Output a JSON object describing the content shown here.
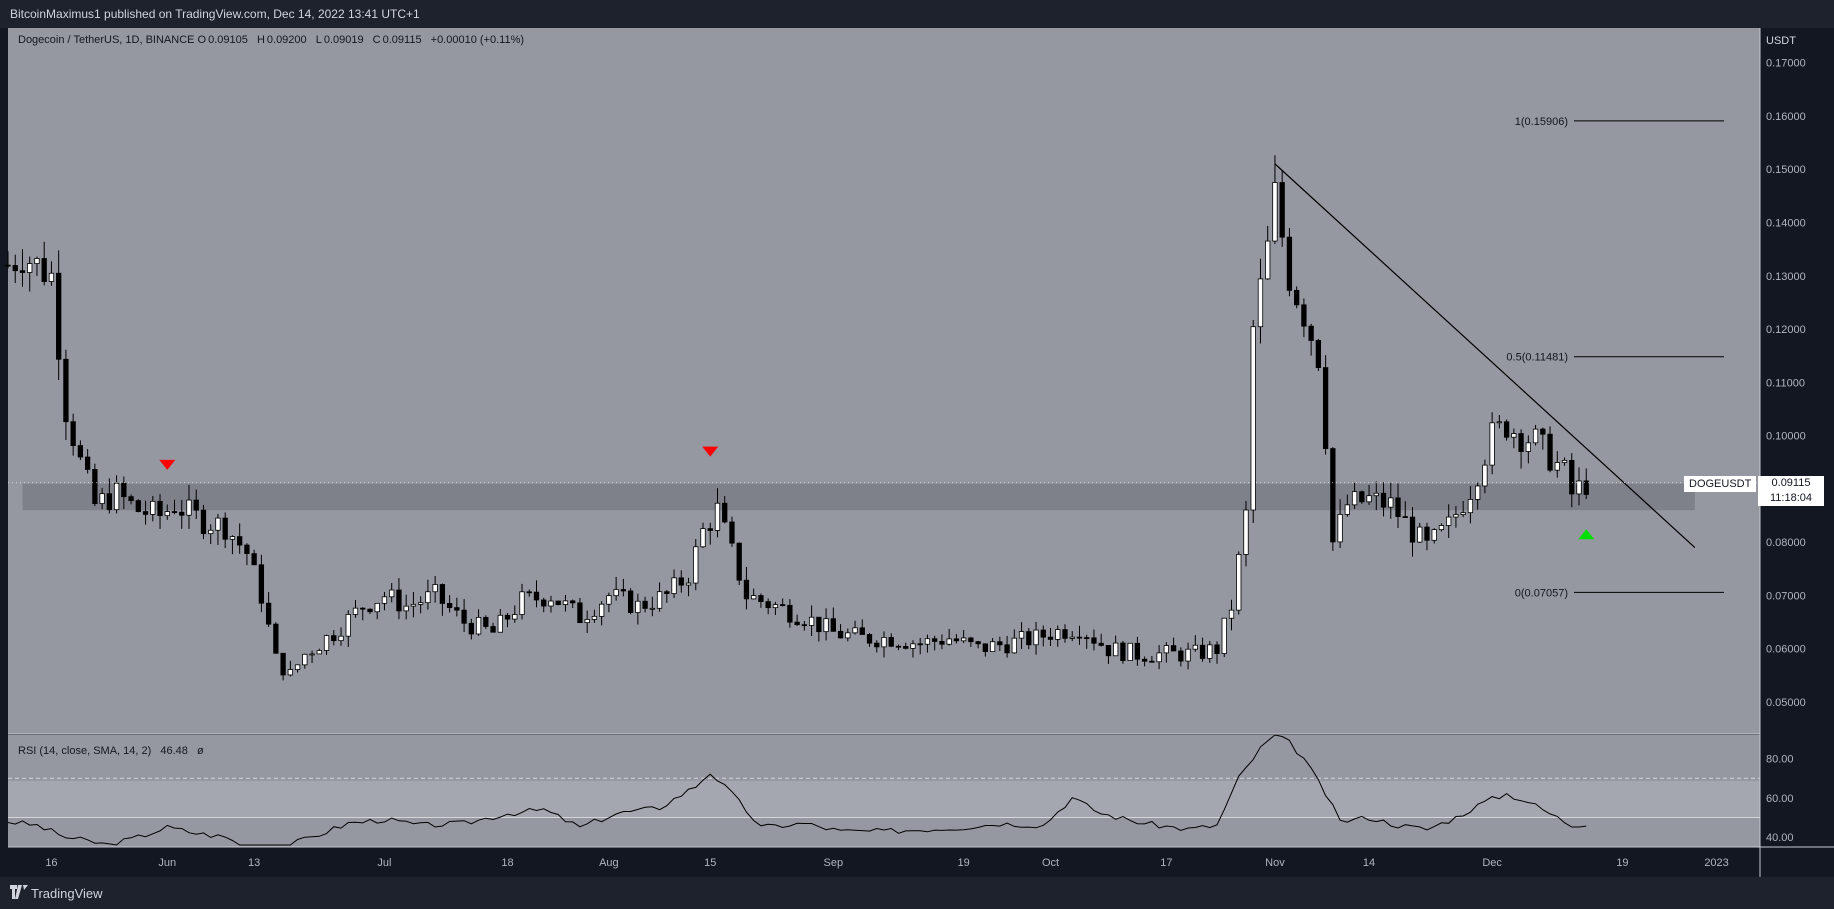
{
  "header": {
    "published": "BitcoinMaximus1 published on TradingView.com, Dec 14, 2022 13:41 UTC+1"
  },
  "footer": {
    "brand": "TradingView"
  },
  "legend": {
    "title": "Dogecoin / TetherUS, 1D, BINANCE",
    "open_label": "O",
    "open": "0.09105",
    "high_label": "H",
    "high": "0.09200",
    "low_label": "L",
    "low": "0.09019",
    "close_label": "C",
    "close": "0.09115",
    "change": "+0.00010 (+0.11%)"
  },
  "price_axis": {
    "unit": "USDT"
  },
  "last_price": {
    "symbol": "DOGEUSDT",
    "value": "0.09115",
    "countdown": "11:18:04"
  },
  "rsi_legend": {
    "label": "RSI (14, close, SMA, 14, 2)",
    "value": "46.48",
    "extra": "ø"
  },
  "colors": {
    "background": "#131722",
    "pane": "#9598a1",
    "candle_up": "#ffffff",
    "candle_down": "#000000",
    "resistance_zone": "#787b86",
    "marker_down": "#ff0000",
    "marker_up": "#00e000"
  },
  "chart_data": {
    "type": "candlestick",
    "symbol": "DOGEUSDT",
    "y_axis": {
      "min": 0.044,
      "max": 0.1765,
      "ticks": [
        "0.05000",
        "0.06000",
        "0.07000",
        "0.08000",
        "0.09000",
        "0.10000",
        "0.11000",
        "0.12000",
        "0.13000",
        "0.14000",
        "0.15000",
        "0.16000",
        "0.17000"
      ]
    },
    "x_axis": {
      "start": "2022-05-10",
      "end": "2023-01-07",
      "ticks": [
        {
          "date": "2022-05-16",
          "label": "16"
        },
        {
          "date": "2022-06-01",
          "label": "Jun"
        },
        {
          "date": "2022-06-13",
          "label": "13"
        },
        {
          "date": "2022-07-01",
          "label": "Jul"
        },
        {
          "date": "2022-07-18",
          "label": "18"
        },
        {
          "date": "2022-08-01",
          "label": "Aug"
        },
        {
          "date": "2022-08-15",
          "label": "15"
        },
        {
          "date": "2022-09-01",
          "label": "Sep"
        },
        {
          "date": "2022-09-19",
          "label": "19"
        },
        {
          "date": "2022-10-01",
          "label": "Oct"
        },
        {
          "date": "2022-10-17",
          "label": "17"
        },
        {
          "date": "2022-11-01",
          "label": "Nov"
        },
        {
          "date": "2022-11-14",
          "label": "14"
        },
        {
          "date": "2022-12-01",
          "label": "Dec"
        },
        {
          "date": "2022-12-19",
          "label": "19"
        },
        {
          "date": "2023-01-01",
          "label": "2023"
        }
      ]
    },
    "price_path": [
      [
        "2022-05-10",
        0.132
      ],
      [
        "2022-05-12",
        0.134
      ],
      [
        "2022-05-14",
        0.132
      ],
      [
        "2022-05-16",
        0.13
      ],
      [
        "2022-05-18",
        0.105
      ],
      [
        "2022-05-20",
        0.095
      ],
      [
        "2022-05-22",
        0.087
      ],
      [
        "2022-05-25",
        0.089
      ],
      [
        "2022-05-28",
        0.086
      ],
      [
        "2022-05-31",
        0.085
      ],
      [
        "2022-06-02",
        0.087
      ],
      [
        "2022-06-06",
        0.084
      ],
      [
        "2022-06-09",
        0.083
      ],
      [
        "2022-06-12",
        0.078
      ],
      [
        "2022-06-14",
        0.07
      ],
      [
        "2022-06-16",
        0.058
      ],
      [
        "2022-06-18",
        0.055
      ],
      [
        "2022-06-20",
        0.059
      ],
      [
        "2022-06-24",
        0.063
      ],
      [
        "2022-06-28",
        0.068
      ],
      [
        "2022-07-01",
        0.07
      ],
      [
        "2022-07-04",
        0.068
      ],
      [
        "2022-07-08",
        0.07
      ],
      [
        "2022-07-12",
        0.065
      ],
      [
        "2022-07-16",
        0.063
      ],
      [
        "2022-07-20",
        0.069
      ],
      [
        "2022-07-24",
        0.07
      ],
      [
        "2022-07-28",
        0.066
      ],
      [
        "2022-08-01",
        0.07
      ],
      [
        "2022-08-05",
        0.068
      ],
      [
        "2022-08-09",
        0.07
      ],
      [
        "2022-08-12",
        0.074
      ],
      [
        "2022-08-14",
        0.082
      ],
      [
        "2022-08-16",
        0.086
      ],
      [
        "2022-08-18",
        0.078
      ],
      [
        "2022-08-20",
        0.07
      ],
      [
        "2022-08-24",
        0.068
      ],
      [
        "2022-08-28",
        0.066
      ],
      [
        "2022-09-01",
        0.063
      ],
      [
        "2022-09-05",
        0.062
      ],
      [
        "2022-09-09",
        0.062
      ],
      [
        "2022-09-13",
        0.061
      ],
      [
        "2022-09-17",
        0.062
      ],
      [
        "2022-09-21",
        0.06
      ],
      [
        "2022-09-25",
        0.061
      ],
      [
        "2022-09-29",
        0.062
      ],
      [
        "2022-10-01",
        0.063
      ],
      [
        "2022-10-05",
        0.064
      ],
      [
        "2022-10-09",
        0.06
      ],
      [
        "2022-10-13",
        0.059
      ],
      [
        "2022-10-17",
        0.059
      ],
      [
        "2022-10-21",
        0.059
      ],
      [
        "2022-10-24",
        0.06
      ],
      [
        "2022-10-26",
        0.068
      ],
      [
        "2022-10-28",
        0.085
      ],
      [
        "2022-10-29",
        0.12
      ],
      [
        "2022-10-31",
        0.135
      ],
      [
        "2022-11-01",
        0.145
      ],
      [
        "2022-11-03",
        0.13
      ],
      [
        "2022-11-05",
        0.123
      ],
      [
        "2022-11-07",
        0.115
      ],
      [
        "2022-11-08",
        0.1
      ],
      [
        "2022-11-09",
        0.08
      ],
      [
        "2022-11-11",
        0.087
      ],
      [
        "2022-11-14",
        0.088
      ],
      [
        "2022-11-17",
        0.087
      ],
      [
        "2022-11-20",
        0.082
      ],
      [
        "2022-11-22",
        0.079
      ],
      [
        "2022-11-25",
        0.083
      ],
      [
        "2022-11-28",
        0.09
      ],
      [
        "2022-12-01",
        0.1
      ],
      [
        "2022-12-03",
        0.102
      ],
      [
        "2022-12-05",
        0.1
      ],
      [
        "2022-12-07",
        0.099
      ],
      [
        "2022-12-09",
        0.096
      ],
      [
        "2022-12-11",
        0.093
      ],
      [
        "2022-12-12",
        0.089
      ],
      [
        "2022-12-14",
        0.09115
      ]
    ],
    "annotations": {
      "fib_levels": [
        {
          "label": "1(0.15906)",
          "value": 0.15906
        },
        {
          "label": "0.5(0.11481)",
          "value": 0.11481
        },
        {
          "label": "0(0.07057)",
          "value": 0.07057
        }
      ],
      "resistance_zone": {
        "low": 0.086,
        "high": 0.091,
        "from": "2022-05-12",
        "to": "2022-12-29"
      },
      "trendline": {
        "from": [
          "2022-11-01",
          0.151
        ],
        "to": [
          "2022-12-29",
          0.079
        ]
      },
      "markers": [
        {
          "type": "down",
          "date": "2022-06-01",
          "price": 0.0945
        },
        {
          "type": "down",
          "date": "2022-08-15",
          "price": 0.097
        },
        {
          "type": "up",
          "date": "2022-12-14",
          "price": 0.0815
        }
      ]
    },
    "rsi": {
      "ticks": [
        "40.00",
        "60.00",
        "80.00"
      ],
      "levels": [
        70,
        50
      ],
      "range": [
        35,
        92
      ],
      "path": [
        [
          "2022-05-10",
          48
        ],
        [
          "2022-05-14",
          46
        ],
        [
          "2022-05-18",
          40
        ],
        [
          "2022-05-24",
          36
        ],
        [
          "2022-05-28",
          40
        ],
        [
          "2022-06-01",
          45
        ],
        [
          "2022-06-05",
          42
        ],
        [
          "2022-06-09",
          40
        ],
        [
          "2022-06-13",
          33
        ],
        [
          "2022-06-17",
          35
        ],
        [
          "2022-06-21",
          40
        ],
        [
          "2022-06-26",
          47
        ],
        [
          "2022-07-01",
          49
        ],
        [
          "2022-07-06",
          46
        ],
        [
          "2022-07-12",
          47
        ],
        [
          "2022-07-18",
          52
        ],
        [
          "2022-07-23",
          54
        ],
        [
          "2022-07-28",
          45
        ],
        [
          "2022-08-02",
          52
        ],
        [
          "2022-08-08",
          55
        ],
        [
          "2022-08-13",
          66
        ],
        [
          "2022-08-15",
          73
        ],
        [
          "2022-08-18",
          62
        ],
        [
          "2022-08-22",
          45
        ],
        [
          "2022-08-28",
          47
        ],
        [
          "2022-09-02",
          43
        ],
        [
          "2022-09-08",
          43
        ],
        [
          "2022-09-14",
          44
        ],
        [
          "2022-09-19",
          45
        ],
        [
          "2022-09-24",
          47
        ],
        [
          "2022-09-30",
          46
        ],
        [
          "2022-10-04",
          60
        ],
        [
          "2022-10-08",
          52
        ],
        [
          "2022-10-14",
          47
        ],
        [
          "2022-10-20",
          44
        ],
        [
          "2022-10-24",
          46
        ],
        [
          "2022-10-27",
          70
        ],
        [
          "2022-10-30",
          85
        ],
        [
          "2022-11-01",
          92
        ],
        [
          "2022-11-03",
          88
        ],
        [
          "2022-11-05",
          80
        ],
        [
          "2022-11-08",
          62
        ],
        [
          "2022-11-10",
          48
        ],
        [
          "2022-11-14",
          50
        ],
        [
          "2022-11-18",
          46
        ],
        [
          "2022-11-22",
          44
        ],
        [
          "2022-11-26",
          50
        ],
        [
          "2022-11-30",
          58
        ],
        [
          "2022-12-03",
          62
        ],
        [
          "2022-12-06",
          58
        ],
        [
          "2022-12-09",
          52
        ],
        [
          "2022-12-12",
          46
        ],
        [
          "2022-12-14",
          47
        ]
      ]
    }
  }
}
